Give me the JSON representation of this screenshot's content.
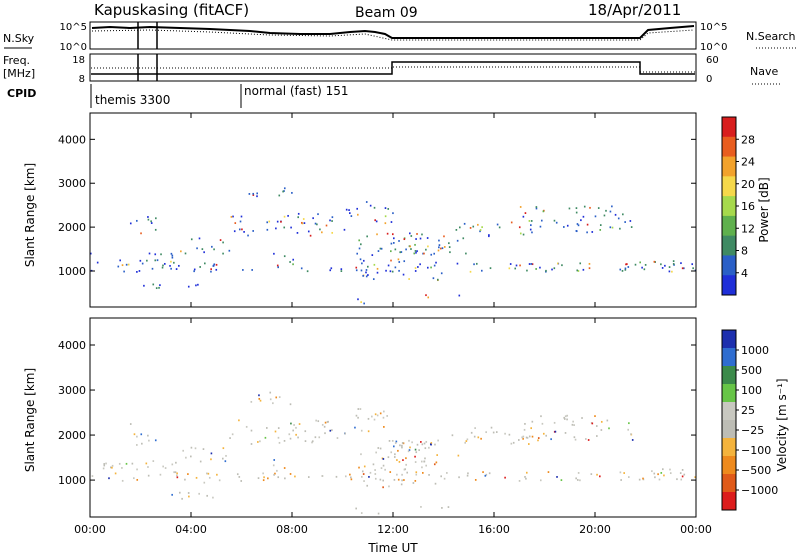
{
  "header": {
    "station": "Kapuskasing (fitACF)",
    "beam": "Beam 09",
    "date": "18/Apr/2011"
  },
  "top_panels": {
    "nsky_label": "N.Sky",
    "nsearch_label": "N.Search",
    "freq_label_1": "Freq.",
    "freq_label_2": "[MHz]",
    "nave_label": "Nave",
    "cpid_label": "CPID",
    "nsky_ticks": [
      "10^5",
      "10^0"
    ],
    "nsearch_ticks": [
      "10^5",
      "10^0"
    ],
    "freq_ticks": [
      "18",
      "8"
    ],
    "nave_ticks": [
      "60",
      "0"
    ],
    "cpid_segments": [
      {
        "start_hour": 0,
        "label": "themis 3300"
      },
      {
        "start_hour": 5.95,
        "label": "normal (fast) 151"
      }
    ]
  },
  "chart_data": [
    {
      "type": "heatmap",
      "name": "power",
      "xlabel": "",
      "ylabel": "Slant Range [km]",
      "xlim": [
        0,
        24
      ],
      "ylim": [
        180,
        4600
      ],
      "yticks": [
        "1000",
        "2000",
        "3000",
        "4000"
      ],
      "colorbar": {
        "label": "Power [dB]",
        "ticks": [
          "4",
          "8",
          "12",
          "16",
          "20",
          "24",
          "28"
        ],
        "colors": [
          "#1f2fd8",
          "#2a5fc7",
          "#3f8a63",
          "#5fb04d",
          "#a6d94c",
          "#f5d84a",
          "#f2a22c",
          "#e85d1f",
          "#d81e1e"
        ]
      }
    },
    {
      "type": "heatmap",
      "name": "velocity",
      "xlabel": "Time UT",
      "ylabel": "Slant Range [km]",
      "xlim": [
        0,
        24
      ],
      "ylim": [
        180,
        4600
      ],
      "yticks": [
        "1000",
        "2000",
        "3000",
        "4000"
      ],
      "xticks": [
        "00:00",
        "04:00",
        "08:00",
        "12:00",
        "16:00",
        "20:00",
        "00:00"
      ],
      "colorbar": {
        "label": "Velocity [m s⁻¹]",
        "ticks": [
          "1000",
          "500",
          "100",
          "25",
          "−25",
          "−100",
          "−500",
          "−1000"
        ],
        "colors": [
          "#1d2fae",
          "#2f6dd0",
          "#3b8a4a",
          "#67c547",
          "#c8c8c0",
          "#bdbdb5",
          "#f4b33c",
          "#ee8a1d",
          "#e05a19",
          "#dc1c1c"
        ]
      }
    }
  ]
}
